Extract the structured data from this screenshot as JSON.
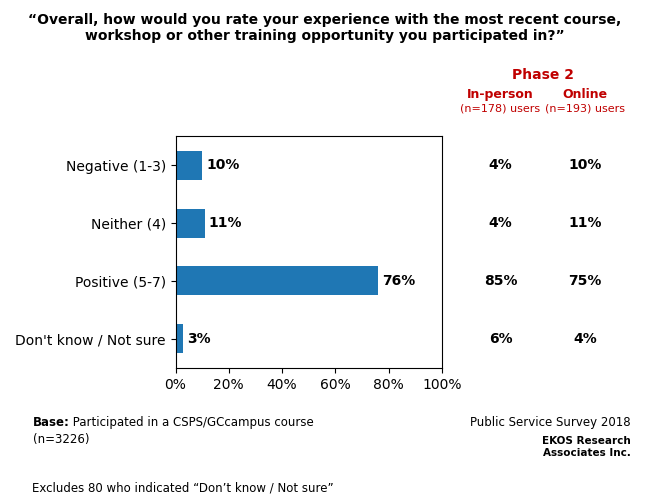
{
  "chart_data": {
    "type": "bar",
    "orientation": "horizontal",
    "title": "“Overall, how would you rate your experience with the most recent course,\nworkshop or other training opportunity you participated in?”",
    "categories": [
      "Negative (1-3)",
      "Neither (4)",
      "Positive (5-7)",
      "Don't know / Not sure"
    ],
    "values": [
      10,
      11,
      76,
      3
    ],
    "value_labels": [
      "10%",
      "11%",
      "76%",
      "3%"
    ],
    "data_labels": true,
    "xlim": [
      0,
      100
    ],
    "xticks": [
      {
        "value": 0,
        "label": "0%"
      },
      {
        "value": 20,
        "label": "20%"
      },
      {
        "value": 40,
        "label": "40%"
      },
      {
        "value": 60,
        "label": "60%"
      },
      {
        "value": 80,
        "label": "80%"
      },
      {
        "value": 100,
        "label": "100%"
      }
    ],
    "side_table": {
      "title": "Phase 2",
      "columns": [
        {
          "name": "In-person",
          "subtitle": "(n=178) users",
          "values": [
            4,
            4,
            85,
            6
          ],
          "value_labels": [
            "4%",
            "4%",
            "85%",
            "6%"
          ]
        },
        {
          "name": "Online",
          "subtitle": "(n=193) users",
          "values": [
            10,
            11,
            75,
            4
          ],
          "value_labels": [
            "10%",
            "11%",
            "75%",
            "4%"
          ]
        }
      ]
    },
    "base_label": "Base:",
    "base_text": " Participated in a CSPS/GCcampus course",
    "base_n": "(n=3226)",
    "source": "Public Service Survey 2018",
    "credit": "EKOS Research\nAssociates Inc.",
    "footnote": "Excludes 80 who indicated “Don’t know / Not sure”"
  }
}
